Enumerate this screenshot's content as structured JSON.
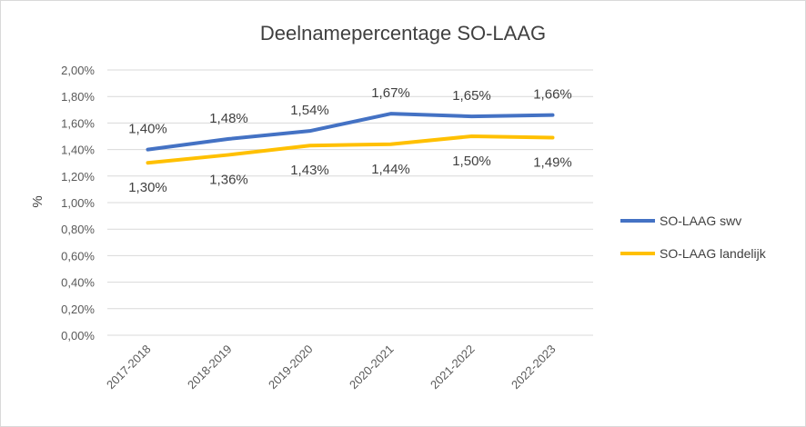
{
  "chart_data": {
    "type": "line",
    "title": "Deelnamepercentage SO-LAAG",
    "xlabel": "",
    "ylabel": "%",
    "categories": [
      "2017-2018",
      "2018-2019",
      "2019-2020",
      "2020-2021",
      "2021-2022",
      "2022-2023"
    ],
    "ylim": [
      0,
      2.0
    ],
    "yticks": [
      0.0,
      0.2,
      0.4,
      0.6,
      0.8,
      1.0,
      1.2,
      1.4,
      1.6,
      1.8,
      2.0
    ],
    "ytick_labels": [
      "0,00%",
      "0,20%",
      "0,40%",
      "0,60%",
      "0,80%",
      "1,00%",
      "1,20%",
      "1,40%",
      "1,60%",
      "1,80%",
      "2,00%"
    ],
    "grid": true,
    "legend_position": "right",
    "series": [
      {
        "name": "SO-LAAG swv",
        "color": "#4472C4",
        "values": [
          1.4,
          1.48,
          1.54,
          1.67,
          1.65,
          1.66
        ],
        "labels": [
          "1,40%",
          "1,48%",
          "1,54%",
          "1,67%",
          "1,65%",
          "1,66%"
        ],
        "label_side": "above"
      },
      {
        "name": "SO-LAAG landelijk",
        "color": "#FFC000",
        "values": [
          1.3,
          1.36,
          1.43,
          1.44,
          1.5,
          1.49
        ],
        "labels": [
          "1,30%",
          "1,36%",
          "1,43%",
          "1,44%",
          "1,50%",
          "1,49%"
        ],
        "label_side": "below"
      }
    ]
  }
}
